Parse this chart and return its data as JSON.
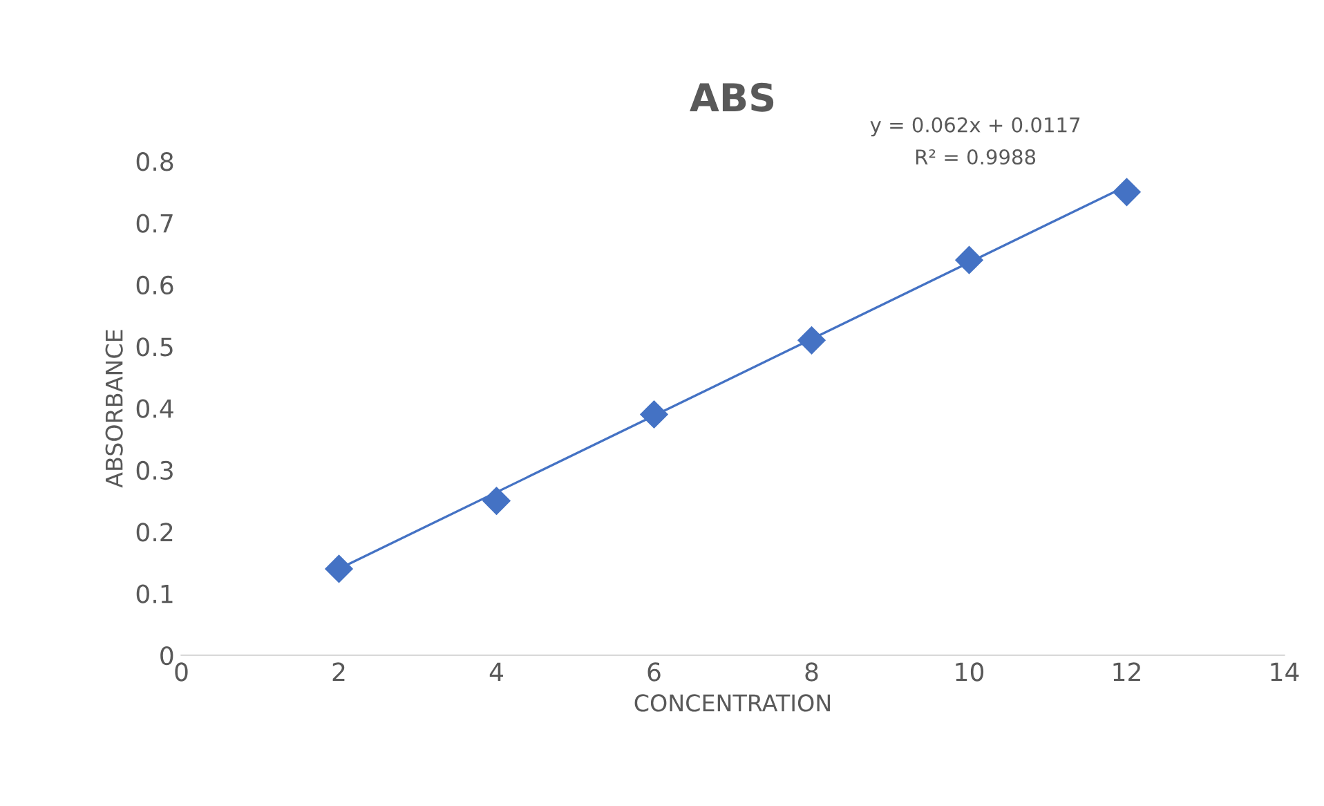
{
  "chart_data": {
    "type": "scatter",
    "title": "ABS",
    "xlabel": "CONCENTRATION",
    "ylabel": "ABSORBANCE",
    "x": [
      2,
      4,
      6,
      8,
      10,
      12
    ],
    "series": [
      {
        "color": "#4472c4",
        "marker": "diamond",
        "values": [
          0.14,
          0.25,
          0.39,
          0.51,
          0.64,
          0.75
        ]
      },
      {
        "type": "line",
        "color": "#4472c4",
        "marker": "none",
        "line_style": "solid",
        "x": [
          2,
          12
        ],
        "values": [
          0.14,
          0.76
        ]
      }
    ],
    "annotations": [
      "y = 0.062x + 0.0117",
      "R² = 0.9988"
    ],
    "xlim": [
      0,
      14
    ],
    "xticks": [
      0,
      2,
      4,
      6,
      8,
      10,
      12,
      14
    ],
    "ylim": [
      0,
      0.8
    ],
    "yticks": [
      0,
      0.1,
      0.2,
      0.3,
      0.4,
      0.5,
      0.6,
      0.7,
      0.8
    ],
    "grid": false,
    "legend": false
  }
}
